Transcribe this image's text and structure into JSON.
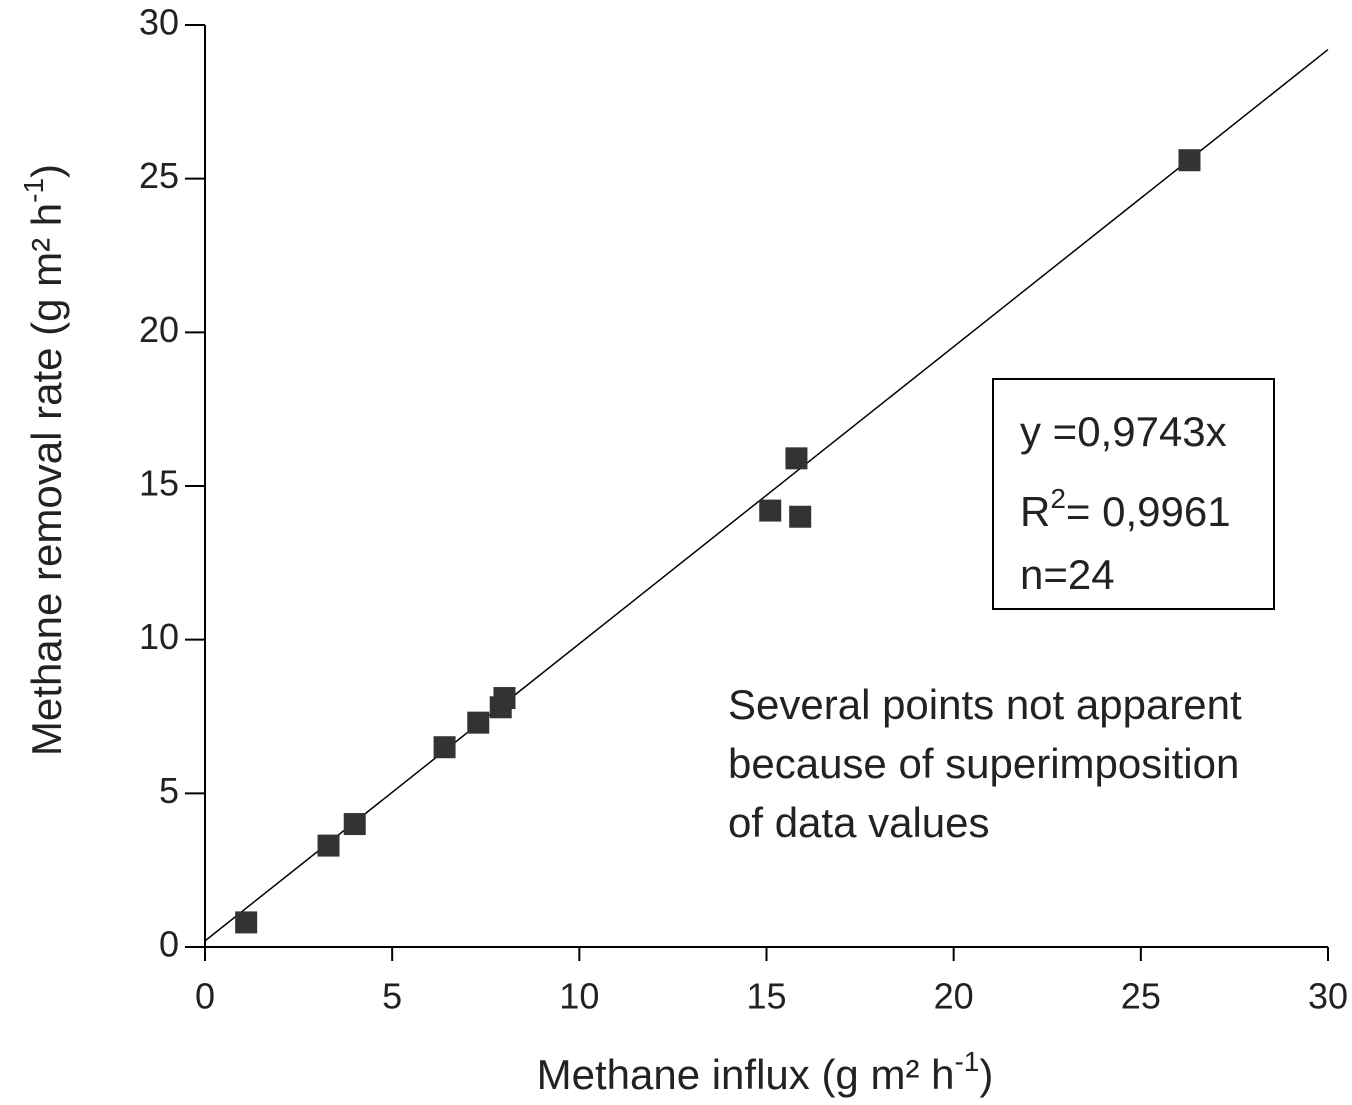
{
  "chart_data": {
    "type": "scatter",
    "xlabel": {
      "text": "Methane influx (g m² h",
      "sup": "-1",
      "end": ")"
    },
    "ylabel": {
      "text": "Methane removal rate (g m² h",
      "sup": "-1",
      "end": ")"
    },
    "xlim": [
      0,
      30
    ],
    "ylim": [
      0,
      30
    ],
    "xticks": [
      0,
      5,
      10,
      15,
      20,
      25,
      30
    ],
    "yticks": [
      0,
      5,
      10,
      15,
      20,
      25,
      30
    ],
    "series": [
      {
        "color": "#333333",
        "x": [
          1.1,
          3.3,
          4.0,
          6.4,
          7.3,
          7.9,
          8.0,
          15.1,
          15.8,
          15.9,
          26.3
        ],
        "values": [
          0.8,
          3.3,
          4.0,
          6.5,
          7.3,
          7.8,
          8.1,
          14.2,
          15.9,
          14.0,
          25.6
        ]
      }
    ],
    "trendline": {
      "x": [
        0,
        30
      ],
      "values": [
        0.2,
        29.2
      ],
      "color": "#000000"
    },
    "equation": "y =0,9743x",
    "r2": {
      "text": "R",
      "sup": "2",
      "end": "= 0,9961"
    },
    "n": "n=24",
    "note": [
      "Several points not apparent",
      "because of superimposition",
      "of data values"
    ]
  }
}
